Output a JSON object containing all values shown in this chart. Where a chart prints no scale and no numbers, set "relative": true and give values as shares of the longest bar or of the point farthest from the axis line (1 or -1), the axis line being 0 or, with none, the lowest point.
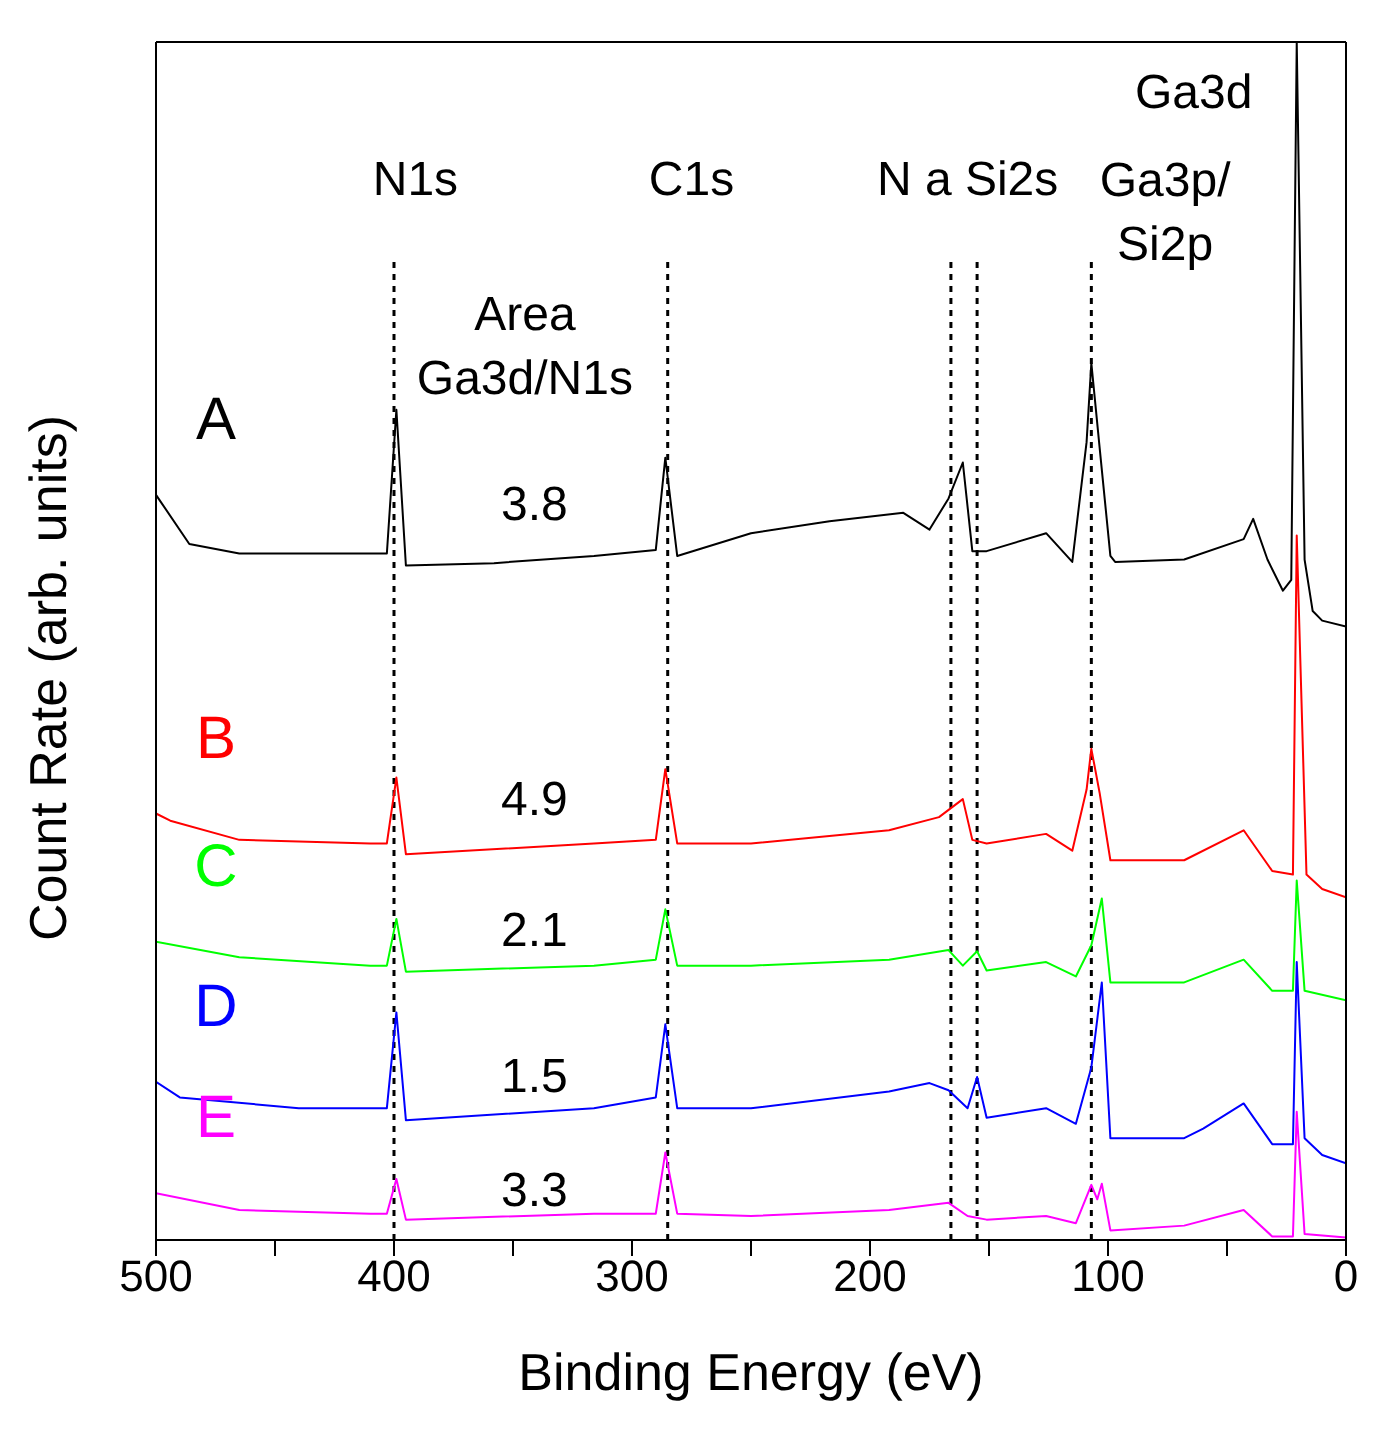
{
  "chart_data": {
    "type": "line",
    "xlabel": "Binding Energy (eV)",
    "ylabel": "Count Rate (arb. units)",
    "relative": true,
    "xlim": [
      500,
      0
    ],
    "xticks": [
      500,
      {
        "value": 450,
        "label": null
      },
      400,
      {
        "value": 350,
        "label": null
      },
      300,
      {
        "value": 250,
        "label": null
      },
      200,
      {
        "value": 150,
        "label": null
      },
      100,
      {
        "value": 50,
        "label": null
      },
      0
    ],
    "marker": "none",
    "line_style": "solid",
    "series": [
      {
        "name": "A",
        "color": "#000000",
        "x": [
          500,
          486,
          465,
          440,
          403,
          399,
          395,
          358,
          316,
          290,
          286,
          281,
          250,
          217,
          186,
          175,
          167,
          161,
          157,
          151,
          126,
          115,
          109,
          107,
          103.5,
          99,
          97,
          68,
          43,
          39,
          33,
          26.5,
          23,
          20.7,
          17.4,
          14,
          10,
          0
        ],
        "values": [
          0.622,
          0.581,
          0.573,
          0.573,
          0.573,
          0.693,
          0.563,
          0.565,
          0.571,
          0.576,
          0.653,
          0.571,
          0.59,
          0.6,
          0.607,
          0.593,
          0.619,
          0.649,
          0.575,
          0.575,
          0.59,
          0.566,
          0.666,
          0.732,
          0.661,
          0.571,
          0.566,
          0.568,
          0.585,
          0.602,
          0.568,
          0.542,
          0.551,
          1.0,
          0.568,
          0.525,
          0.517,
          0.512
        ]
      },
      {
        "name": "B",
        "color": "#ff0000",
        "x": [
          500,
          494,
          465,
          410,
          403,
          399,
          395,
          316,
          290,
          286,
          281,
          250,
          192,
          171,
          161,
          157,
          151,
          126,
          115,
          109,
          107,
          103.5,
          99,
          68,
          43,
          31,
          22.3,
          20.7,
          16.6,
          10,
          0
        ],
        "values": [
          0.356,
          0.35,
          0.334,
          0.331,
          0.331,
          0.386,
          0.322,
          0.331,
          0.334,
          0.393,
          0.331,
          0.331,
          0.342,
          0.353,
          0.368,
          0.334,
          0.331,
          0.339,
          0.325,
          0.376,
          0.41,
          0.373,
          0.317,
          0.317,
          0.342,
          0.308,
          0.305,
          0.588,
          0.305,
          0.293,
          0.286
        ]
      },
      {
        "name": "C",
        "color": "#00ff00",
        "x": [
          500,
          465,
          410,
          403,
          399,
          395,
          316,
          290,
          286,
          281,
          250,
          192,
          167,
          161,
          155,
          151,
          126,
          113.5,
          107,
          102.6,
          99,
          68,
          43,
          31,
          22.3,
          20.7,
          17.4,
          0
        ],
        "values": [
          0.249,
          0.236,
          0.229,
          0.229,
          0.268,
          0.224,
          0.229,
          0.234,
          0.276,
          0.229,
          0.229,
          0.234,
          0.242,
          0.229,
          0.241,
          0.225,
          0.232,
          0.22,
          0.246,
          0.285,
          0.215,
          0.215,
          0.234,
          0.208,
          0.208,
          0.3,
          0.208,
          0.2
        ]
      },
      {
        "name": "D",
        "color": "#0000ff",
        "x": [
          500,
          490,
          440,
          403,
          399,
          395,
          316,
          290,
          286,
          281,
          250,
          192,
          175,
          167,
          159,
          155,
          151,
          126,
          113.5,
          107,
          102.6,
          99,
          68,
          60,
          43,
          31,
          22.3,
          20.7,
          17.4,
          10,
          0
        ],
        "values": [
          0.132,
          0.119,
          0.11,
          0.11,
          0.19,
          0.1,
          0.11,
          0.119,
          0.18,
          0.11,
          0.11,
          0.124,
          0.131,
          0.125,
          0.11,
          0.136,
          0.102,
          0.11,
          0.097,
          0.144,
          0.215,
          0.085,
          0.085,
          0.093,
          0.114,
          0.08,
          0.08,
          0.232,
          0.085,
          0.071,
          0.064
        ]
      },
      {
        "name": "E",
        "color": "#ff00ff",
        "x": [
          500,
          465,
          410,
          403,
          399,
          395,
          316,
          290,
          286,
          281,
          250,
          192,
          167,
          159,
          151,
          126,
          113.5,
          107,
          104.5,
          102.6,
          99,
          68,
          43,
          31,
          22.3,
          20.7,
          17.4,
          0
        ],
        "values": [
          0.039,
          0.025,
          0.022,
          0.022,
          0.051,
          0.017,
          0.022,
          0.022,
          0.073,
          0.022,
          0.02,
          0.025,
          0.031,
          0.02,
          0.017,
          0.02,
          0.014,
          0.046,
          0.034,
          0.047,
          0.008,
          0.012,
          0.025,
          0.003,
          0.003,
          0.107,
          0.005,
          0.002
        ]
      }
    ],
    "ref_lines": [
      {
        "axis": "x",
        "value": 400,
        "line_style": "dotted"
      },
      {
        "axis": "x",
        "value": 285,
        "line_style": "dotted"
      },
      {
        "axis": "x",
        "value": 166,
        "line_style": "dotted"
      },
      {
        "axis": "x",
        "value": 155,
        "line_style": "dotted"
      },
      {
        "axis": "x",
        "value": 107,
        "line_style": "dotted"
      }
    ],
    "annotations": [
      "N1s",
      "C1s",
      "N a Si2s",
      "Ga3p/\nSi2p",
      "Ga3d",
      "Area\nGa3d/N1s",
      "3.8",
      "4.9",
      "2.1",
      "1.5",
      "3.3"
    ]
  }
}
